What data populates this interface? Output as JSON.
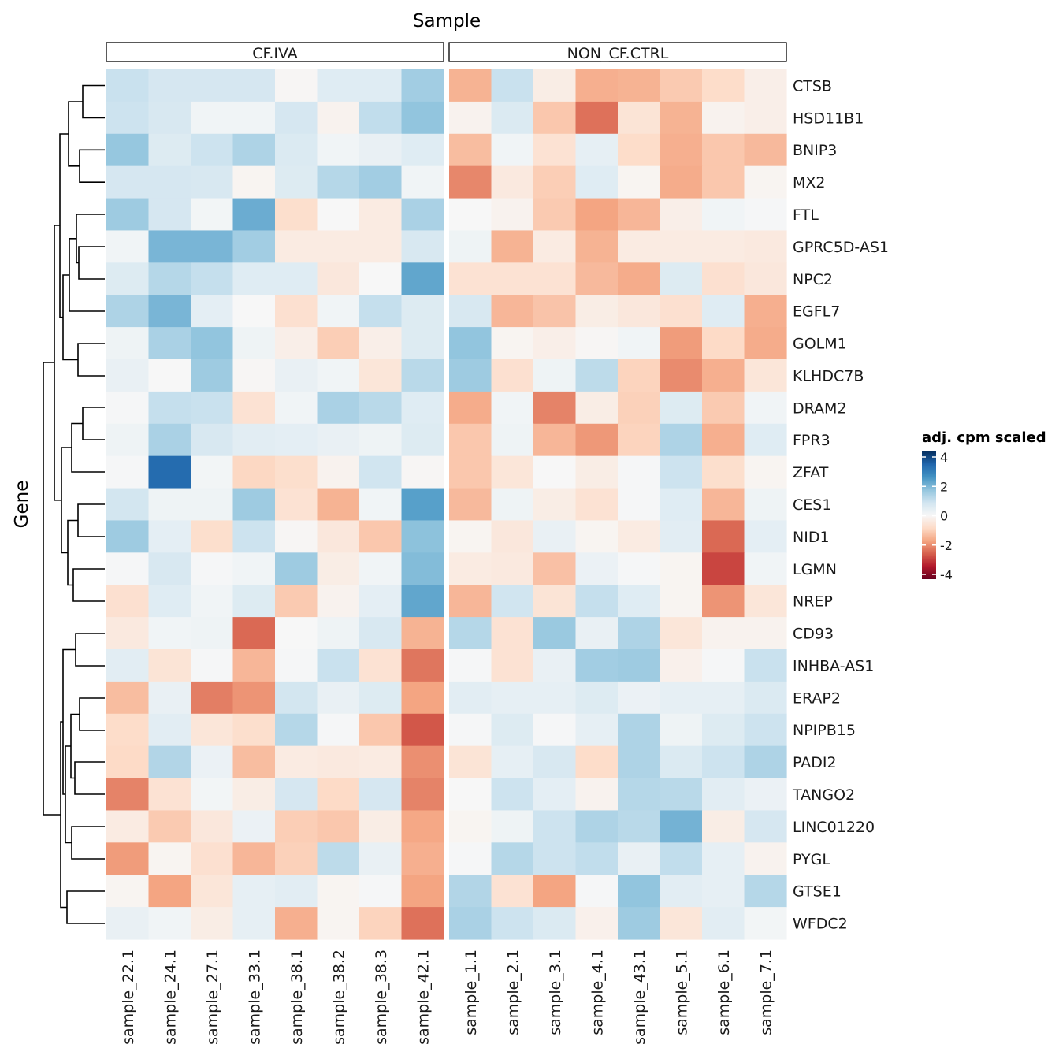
{
  "chart_data": {
    "type": "heatmap",
    "title": "",
    "xlabel": "Sample",
    "ylabel": "Gene",
    "groups": [
      {
        "label": "CF.IVA",
        "samples": [
          "sample_22.1",
          "sample_24.1",
          "sample_27.1",
          "sample_33.1",
          "sample_38.1",
          "sample_38.2",
          "sample_38.3",
          "sample_42.1"
        ]
      },
      {
        "label": "NON_CF.CTRL",
        "samples": [
          "sample_1.1",
          "sample_2.1",
          "sample_3.1",
          "sample_4.1",
          "sample_43.1",
          "sample_5.1",
          "sample_6.1",
          "sample_7.1"
        ]
      }
    ],
    "columns": [
      "sample_22.1",
      "sample_24.1",
      "sample_27.1",
      "sample_33.1",
      "sample_38.1",
      "sample_38.2",
      "sample_38.3",
      "sample_42.1",
      "sample_1.1",
      "sample_2.1",
      "sample_3.1",
      "sample_4.1",
      "sample_43.1",
      "sample_5.1",
      "sample_6.1",
      "sample_7.1"
    ],
    "rows": [
      "CTSB",
      "HSD11B1",
      "BNIP3",
      "MX2",
      "FTL",
      "GPRC5D-AS1",
      "NPC2",
      "EGFL7",
      "GOLM1",
      "KLHDC7B",
      "DRAM2",
      "FPR3",
      "ZFAT",
      "CES1",
      "NID1",
      "LGMN",
      "NREP",
      "CD93",
      "INHBA-AS1",
      "ERAP2",
      "NPIPB15",
      "PADI2",
      "TANGO2",
      "LINC01220",
      "PYGL",
      "GTSE1",
      "WFDC2"
    ],
    "values": [
      [
        0.9,
        0.7,
        0.7,
        0.7,
        -0.05,
        0.5,
        0.5,
        1.4,
        -1.4,
        0.9,
        -0.3,
        -1.45,
        -1.4,
        -1.05,
        -0.75,
        -0.25
      ],
      [
        0.85,
        0.65,
        0.15,
        0.15,
        0.7,
        -0.15,
        1.0,
        1.6,
        -0.15,
        0.6,
        -1.1,
        -2.2,
        -0.55,
        -1.4,
        -0.15,
        -0.25
      ],
      [
        1.55,
        0.55,
        0.85,
        1.25,
        0.6,
        0.15,
        0.3,
        0.5,
        -1.25,
        0.15,
        -0.6,
        0.35,
        -0.75,
        -1.45,
        -1.1,
        -1.3
      ],
      [
        0.7,
        0.7,
        0.65,
        -0.1,
        0.55,
        1.15,
        1.4,
        0.15,
        -1.95,
        -0.4,
        -1.0,
        0.5,
        -0.1,
        -1.5,
        -1.1,
        -0.1
      ],
      [
        1.45,
        0.7,
        0.1,
        2.0,
        -0.7,
        0.0,
        -0.35,
        1.3,
        0.0,
        -0.15,
        -1.05,
        -1.6,
        -1.35,
        -0.25,
        0.15,
        0.05
      ],
      [
        0.15,
        1.85,
        1.85,
        1.4,
        -0.35,
        -0.35,
        -0.35,
        0.65,
        0.2,
        -1.4,
        -0.35,
        -1.4,
        -0.35,
        -0.35,
        -0.35,
        -0.4
      ],
      [
        0.55,
        1.15,
        0.95,
        0.5,
        0.5,
        -0.45,
        0.0,
        2.1,
        -0.6,
        -0.6,
        -0.6,
        -1.3,
        -1.5,
        0.55,
        -0.65,
        -0.45
      ],
      [
        1.25,
        1.85,
        0.4,
        0.0,
        -0.65,
        0.15,
        0.95,
        0.55,
        0.65,
        -1.35,
        -1.15,
        -0.3,
        -0.45,
        -0.65,
        0.5,
        -1.45
      ],
      [
        0.2,
        1.3,
        1.6,
        0.2,
        -0.25,
        -1.0,
        -0.25,
        0.55,
        1.6,
        -0.1,
        -0.25,
        -0.05,
        0.15,
        -1.7,
        -0.8,
        -1.5
      ],
      [
        0.3,
        0.0,
        1.45,
        -0.05,
        0.3,
        0.15,
        -0.5,
        1.1,
        1.45,
        -0.65,
        0.2,
        1.05,
        -0.9,
        -1.9,
        -1.45,
        -0.5
      ],
      [
        0.05,
        0.95,
        0.9,
        -0.6,
        0.15,
        1.3,
        1.1,
        0.5,
        -1.5,
        0.15,
        -2.0,
        -0.3,
        -0.95,
        0.55,
        -1.05,
        0.15
      ],
      [
        0.2,
        1.3,
        0.65,
        0.45,
        0.4,
        0.3,
        0.2,
        0.55,
        -1.1,
        0.2,
        -1.35,
        -1.75,
        -0.9,
        1.25,
        -1.45,
        0.5
      ],
      [
        0.05,
        3.1,
        0.1,
        -0.85,
        -0.7,
        -0.15,
        0.8,
        -0.05,
        -1.1,
        -0.5,
        0.0,
        -0.3,
        0.05,
        0.85,
        -0.7,
        -0.1
      ],
      [
        0.75,
        0.2,
        0.2,
        1.45,
        -0.6,
        -1.4,
        0.15,
        2.2,
        -1.3,
        0.2,
        -0.3,
        -0.6,
        0.05,
        0.5,
        -1.35,
        0.2
      ],
      [
        1.45,
        0.4,
        -0.7,
        0.85,
        -0.05,
        -0.45,
        -1.1,
        1.65,
        -0.1,
        -0.45,
        0.3,
        -0.1,
        -0.35,
        0.45,
        -2.3,
        0.4
      ],
      [
        0.05,
        0.65,
        0.05,
        0.15,
        1.45,
        -0.3,
        0.15,
        1.75,
        -0.35,
        -0.4,
        -1.2,
        0.25,
        0.05,
        -0.1,
        -2.7,
        0.15
      ],
      [
        -0.65,
        0.5,
        0.15,
        0.55,
        -1.05,
        -0.15,
        0.4,
        2.1,
        -1.35,
        0.8,
        -0.55,
        0.95,
        0.5,
        -0.1,
        -1.8,
        -0.5
      ],
      [
        -0.4,
        0.15,
        0.2,
        -2.3,
        0.0,
        0.2,
        0.65,
        -1.4,
        1.15,
        -0.6,
        1.5,
        0.3,
        1.25,
        -0.5,
        -0.15,
        -0.15
      ],
      [
        0.45,
        -0.55,
        0.05,
        -1.35,
        0.05,
        0.9,
        -0.6,
        -2.15,
        0.05,
        -0.6,
        0.3,
        1.4,
        1.45,
        -0.2,
        0.05,
        0.9
      ],
      [
        -1.25,
        0.3,
        -2.05,
        -1.8,
        0.75,
        0.3,
        0.55,
        -1.6,
        0.45,
        0.35,
        0.35,
        0.55,
        0.25,
        0.35,
        0.35,
        0.6
      ],
      [
        -0.75,
        0.45,
        -0.5,
        -0.7,
        1.15,
        0.05,
        -1.1,
        -2.5,
        0.05,
        0.55,
        0.05,
        0.35,
        1.25,
        0.2,
        0.55,
        0.85
      ],
      [
        -0.8,
        1.2,
        0.25,
        -1.25,
        -0.35,
        -0.4,
        -0.35,
        -1.85,
        -0.55,
        0.35,
        0.65,
        -0.75,
        1.25,
        0.6,
        0.85,
        1.25
      ],
      [
        -2.0,
        -0.6,
        0.1,
        -0.3,
        0.7,
        -0.8,
        0.7,
        -2.0,
        0.0,
        0.85,
        0.4,
        -0.15,
        1.15,
        1.1,
        0.45,
        0.25
      ],
      [
        -0.35,
        -1.05,
        -0.45,
        0.25,
        -1.0,
        -1.1,
        -0.3,
        -1.55,
        -0.1,
        0.2,
        0.85,
        1.25,
        1.1,
        1.9,
        -0.3,
        0.7
      ],
      [
        -1.7,
        -0.1,
        -0.65,
        -1.35,
        -0.95,
        1.05,
        0.3,
        -1.45,
        0.05,
        1.15,
        0.85,
        1.0,
        0.3,
        1.0,
        0.35,
        -0.15
      ],
      [
        -0.1,
        -1.6,
        -0.5,
        0.35,
        0.45,
        -0.1,
        0.05,
        -1.6,
        1.2,
        -0.6,
        -1.6,
        0.05,
        1.6,
        0.45,
        0.35,
        1.15
      ],
      [
        0.3,
        0.15,
        -0.3,
        0.35,
        -1.45,
        -0.1,
        -0.9,
        -2.2,
        1.3,
        0.85,
        0.6,
        -0.2,
        1.45,
        -0.5,
        0.45,
        0.1
      ]
    ],
    "color_scale": {
      "name": "RdBu",
      "range": [
        -4,
        4
      ],
      "colors": [
        "#67001f",
        "#b2182b",
        "#d6604d",
        "#f4a582",
        "#fddbc7",
        "#f7f7f7",
        "#d1e5f0",
        "#92c5de",
        "#4393c3",
        "#2166ac",
        "#053061"
      ]
    },
    "legend": {
      "title": "adj. cpm scaled",
      "ticks": [
        "4",
        "2",
        "0",
        "-2",
        "-4"
      ],
      "placement": "right"
    },
    "row_dendrogram": true,
    "column_split": true
  }
}
